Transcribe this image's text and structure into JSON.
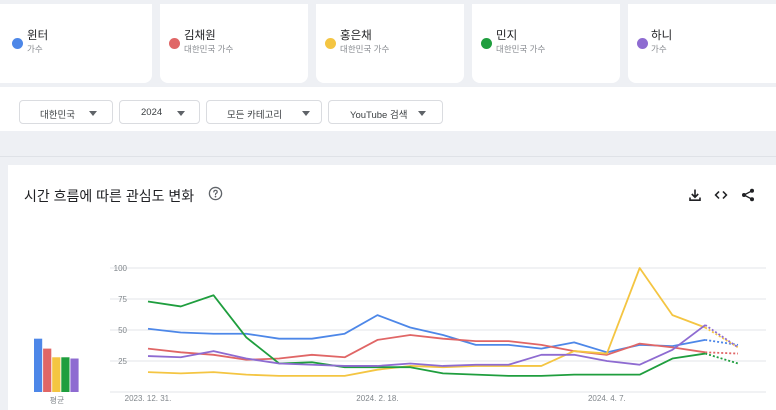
{
  "terms": [
    {
      "name": "윈터",
      "category": "가수",
      "color": "#4d87e8"
    },
    {
      "name": "김채원",
      "category": "대한민국 가수",
      "color": "#e06666"
    },
    {
      "name": "홍은채",
      "category": "대한민국 가수",
      "color": "#f4c542"
    },
    {
      "name": "민지",
      "category": "대한민국 가수",
      "color": "#1f9e3e"
    },
    {
      "name": "하니",
      "category": "가수",
      "color": "#8e6bd1"
    }
  ],
  "filters": {
    "region": "대한민국",
    "period": "2024",
    "category": "모든 카테고리",
    "source": "YouTube 검색"
  },
  "panel": {
    "title": "시간 흐름에 따른 관심도 변화"
  },
  "icons": {
    "help": "help-circle-icon",
    "download": "download-icon",
    "embed": "embed-code-icon",
    "share": "share-icon"
  },
  "chart_data": {
    "type": "line",
    "x": [
      "2023. 12. 31.",
      "2024. 1. 7.",
      "2024. 1. 14.",
      "2024. 1. 21.",
      "2024. 1. 28.",
      "2024. 2. 4.",
      "2024. 2. 11.",
      "2024. 2. 18.",
      "2024. 2. 25.",
      "2024. 3. 3.",
      "2024. 3. 10.",
      "2024. 3. 17.",
      "2024. 3. 24.",
      "2024. 3. 31.",
      "2024. 4. 7.",
      "2024. 4. 14.",
      "2024. 4. 21.",
      "2024. 4. 28.",
      "2024. 5. 5."
    ],
    "x_tick_labels": [
      "2023. 12. 31.",
      "2024. 2. 18.",
      "2024. 4. 7."
    ],
    "y_ticks": [
      100,
      75,
      50,
      25
    ],
    "ylim": [
      0,
      100
    ],
    "partial_last_point": true,
    "series": [
      {
        "name": "윈터",
        "color": "#4d87e8",
        "values": [
          51,
          48,
          47,
          47,
          43,
          43,
          47,
          62,
          52,
          46,
          38,
          38,
          35,
          40,
          32,
          38,
          37,
          42,
          38
        ]
      },
      {
        "name": "김채원",
        "color": "#e06666",
        "values": [
          35,
          32,
          30,
          26,
          27,
          30,
          28,
          42,
          46,
          43,
          41,
          41,
          38,
          33,
          30,
          39,
          36,
          32,
          31
        ]
      },
      {
        "name": "홍은채",
        "color": "#f4c542",
        "values": [
          16,
          15,
          16,
          14,
          13,
          13,
          13,
          18,
          21,
          20,
          21,
          21,
          21,
          33,
          31,
          100,
          62,
          52,
          36
        ]
      },
      {
        "name": "민지",
        "color": "#1f9e3e",
        "values": [
          73,
          69,
          78,
          44,
          23,
          24,
          20,
          20,
          20,
          15,
          14,
          13,
          13,
          14,
          14,
          14,
          27,
          31,
          23
        ]
      },
      {
        "name": "하니",
        "color": "#8e6bd1",
        "values": [
          29,
          28,
          33,
          27,
          23,
          22,
          21,
          21,
          23,
          21,
          22,
          22,
          30,
          30,
          25,
          22,
          34,
          54,
          36
        ]
      }
    ],
    "average": {
      "label": "평균",
      "values": [
        43,
        35,
        28,
        28,
        27
      ]
    }
  }
}
